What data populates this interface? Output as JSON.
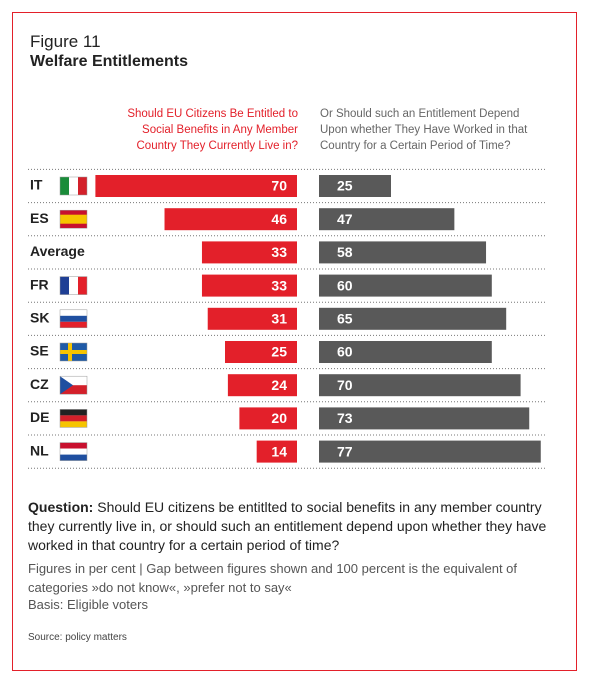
{
  "chart_data": {
    "type": "diverging_bar",
    "label": "Figure 11",
    "title": "Welfare Entitlements",
    "categories": [
      "IT",
      "ES",
      "Average",
      "FR",
      "SK",
      "SE",
      "CZ",
      "DE",
      "NL"
    ],
    "series": [
      {
        "name": "Should EU Citizens Be Entitled to Social Benefits in Any Member Country They Currently Live in?",
        "color": "#e3202a",
        "values": [
          70,
          46,
          33,
          33,
          31,
          25,
          24,
          20,
          14
        ]
      },
      {
        "name": "Or Should such an Entitlement Depend Upon whether They Have Worked in that Country for a Certain Period of Time?",
        "color": "#595959",
        "values": [
          25,
          47,
          58,
          60,
          65,
          60,
          70,
          73,
          77
        ]
      }
    ],
    "question_label": "Question:",
    "question": "Should EU citizens be entitlted to social benefits in any member country they currently live in, or should such an entitlement depend upon whether they have worked in that country for a certain period of time?",
    "notes": [
      "Figures in per cent | Gap between figures shown and 100 percent is the equivalent of categories »do not know«, »prefer not to say«",
      "Basis: Eligible voters"
    ],
    "source": "Source: policy matters"
  }
}
